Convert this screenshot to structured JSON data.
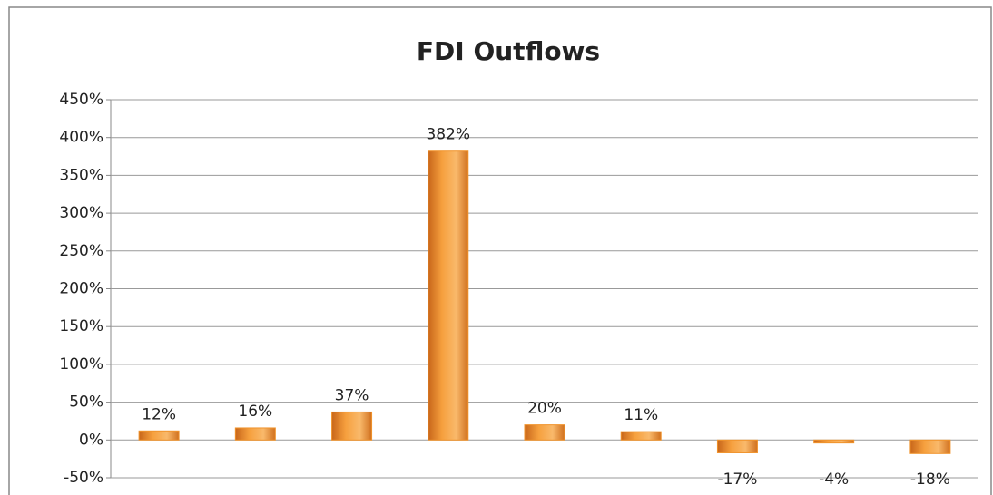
{
  "chart_data": {
    "type": "bar",
    "title": "FDI Outflows",
    "categories": [
      null,
      null,
      null,
      null,
      null,
      null,
      null,
      null,
      null
    ],
    "values": [
      12,
      16,
      37,
      382,
      20,
      11,
      -17,
      -4,
      -18
    ],
    "value_labels": [
      "12%",
      "16%",
      "37%",
      "382%",
      "20%",
      "11%",
      "-17%",
      "-4%",
      "-18%"
    ],
    "color": "#f0932b",
    "ylim": [
      -50,
      450
    ],
    "yticks": [
      {
        "value": -50,
        "label": "-50%"
      },
      {
        "value": 0,
        "label": "0%"
      },
      {
        "value": 50,
        "label": "50%"
      },
      {
        "value": 100,
        "label": "100%"
      },
      {
        "value": 150,
        "label": "150%"
      },
      {
        "value": 200,
        "label": "200%"
      },
      {
        "value": 250,
        "label": "250%"
      },
      {
        "value": 300,
        "label": "300%"
      },
      {
        "value": 350,
        "label": "350%"
      },
      {
        "value": 400,
        "label": "400%"
      },
      {
        "value": 450,
        "label": "450%"
      }
    ],
    "grid": true
  }
}
